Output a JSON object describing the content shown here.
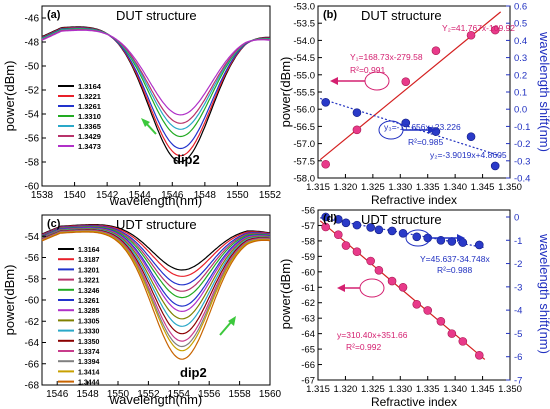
{
  "figure": {
    "description_panels": [
      "a",
      "b",
      "c",
      "d"
    ]
  },
  "chart_data": [
    {
      "panel": "(a)",
      "type": "line",
      "title": "DUT structure",
      "xlabel": "wavelength(nm)",
      "ylabel": "power(dBm)",
      "xlim": [
        1538,
        1552
      ],
      "ylim": [
        -60,
        -45
      ],
      "xticks": [
        1538,
        1540,
        1542,
        1544,
        1546,
        1548,
        1550,
        1552
      ],
      "yticks": [
        -60,
        -58,
        -56,
        -54,
        -52,
        -50,
        -48,
        -46
      ],
      "annotation": "dip2",
      "legend": [
        "1.3164",
        "1.3221",
        "1.3261",
        "1.3310",
        "1.3365",
        "1.3429",
        "1.3473"
      ],
      "colors": [
        "#000000",
        "#e8202a",
        "#2233cc",
        "#22aa22",
        "#2aa8c8",
        "#b8326a",
        "#b030c8"
      ],
      "dip_center": 1546.5,
      "dip_depths": [
        -58.0,
        -57.5,
        -56.9,
        -55.9,
        -55.3,
        -54.8,
        -54.1
      ],
      "top_level": -47.0
    },
    {
      "panel": "(b)",
      "type": "scatter",
      "title": "DUT structure",
      "xlabel": "Refractive index",
      "ylabel": "power(dBm)",
      "y2label": "wavelength shift(nm)",
      "xlim": [
        1.315,
        1.35
      ],
      "ylim": [
        -58,
        -53
      ],
      "y2lim": [
        -0.4,
        0.6
      ],
      "xticks": [
        1.315,
        1.32,
        1.325,
        1.33,
        1.335,
        1.34,
        1.345,
        1.35
      ],
      "yticks": [
        -58.0,
        -57.5,
        -57.0,
        -56.5,
        -56.0,
        -55.5,
        -55.0,
        -54.5,
        -54.0,
        -53.5,
        -53.0
      ],
      "y2ticks": [
        -0.4,
        -0.3,
        -0.2,
        -0.1,
        0.0,
        0.1,
        0.2,
        0.3,
        0.4,
        0.5,
        0.6
      ],
      "series": [
        {
          "axis": "y",
          "x": [
            1.3164,
            1.3221,
            1.331,
            1.3365,
            1.3429,
            1.3473
          ],
          "y": [
            -57.6,
            -56.6,
            -55.2,
            -54.3,
            -53.85,
            -53.7
          ]
        },
        {
          "axis": "y2",
          "x": [
            1.3164,
            1.3221,
            1.331,
            1.3365,
            1.3429,
            1.3473
          ],
          "y": [
            0.04,
            -0.02,
            -0.08,
            -0.13,
            -0.16,
            -0.33
          ]
        }
      ],
      "annotations": [
        "Y₁=168.73x-279.58",
        "R²=0.991",
        "Y₂=41.767x-109.92",
        "y₃=-17.656x+23.226",
        "R²=0.985",
        "y₂=-3.9019x+4.8605"
      ]
    },
    {
      "panel": "(c)",
      "type": "line",
      "title": "UDT structure",
      "xlabel": "wavelength(nm)",
      "ylabel": "power(dBm)",
      "xlim": [
        1545,
        1560
      ],
      "ylim": [
        -68,
        -52
      ],
      "xticks": [
        1546,
        1548,
        1550,
        1552,
        1554,
        1556,
        1558,
        1560
      ],
      "yticks": [
        -68,
        -66,
        -64,
        -62,
        -60,
        -58,
        -56,
        -54
      ],
      "annotation": "dip2",
      "legend": [
        "1.3164",
        "1.3187",
        "1.3201",
        "1.3221",
        "1.3246",
        "1.3261",
        "1.3285",
        "1.3305",
        "1.3330",
        "1.3350",
        "1.3374",
        "1.3394",
        "1.3414",
        "1.3444"
      ],
      "colors": [
        "#000000",
        "#e8202a",
        "#2233cc",
        "#b8326a",
        "#22aa22",
        "#2233cc",
        "#b030c8",
        "#808000",
        "#2aa8c8",
        "#8b0000",
        "#c83c8c",
        "#808080",
        "#c8a000",
        "#c86400"
      ],
      "dip_center": 1554.2,
      "dip_depths": [
        -57.2,
        -57.8,
        -58.6,
        -59.2,
        -59.8,
        -60.6,
        -61.1,
        -61.8,
        -62.5,
        -63.2,
        -63.9,
        -64.4,
        -64.8,
        -65.6
      ],
      "top_level": -53.2
    },
    {
      "panel": "(d)",
      "type": "scatter",
      "title": "UDT structure",
      "xlabel": "Refractive index",
      "ylabel": "power(dBm)",
      "y2label": "wavelength shift(nm)",
      "xlim": [
        1.315,
        1.35
      ],
      "ylim": [
        -67,
        -56
      ],
      "y2lim": [
        -7,
        0.3
      ],
      "xticks": [
        1.315,
        1.32,
        1.325,
        1.33,
        1.335,
        1.34,
        1.345,
        1.35
      ],
      "yticks": [
        -67,
        -66,
        -65,
        -64,
        -63,
        -62,
        -61,
        -60,
        -59,
        -58,
        -57,
        -56
      ],
      "y2ticks": [
        -7,
        -6,
        -5,
        -4,
        -3,
        -2,
        -1,
        0
      ],
      "series": [
        {
          "axis": "y",
          "x": [
            1.3164,
            1.3187,
            1.3201,
            1.3221,
            1.3246,
            1.3261,
            1.3285,
            1.3305,
            1.333,
            1.335,
            1.3374,
            1.3394,
            1.3414,
            1.3444
          ],
          "y": [
            -57.1,
            -57.6,
            -58.3,
            -58.7,
            -59.3,
            -59.9,
            -60.6,
            -61.0,
            -62.1,
            -62.5,
            -63.2,
            -64.0,
            -64.5,
            -65.4
          ]
        },
        {
          "axis": "y2",
          "x": [
            1.3164,
            1.3187,
            1.3201,
            1.3221,
            1.3246,
            1.3261,
            1.3285,
            1.3305,
            1.333,
            1.335,
            1.3374,
            1.3394,
            1.3414,
            1.3444
          ],
          "y": [
            0.0,
            -0.1,
            -0.25,
            -0.35,
            -0.45,
            -0.55,
            -0.6,
            -0.7,
            -0.85,
            -0.9,
            -1.0,
            -1.05,
            -1.1,
            -1.2
          ]
        }
      ],
      "annotations": [
        "Y=45.637-34.748x",
        "R²=0.988",
        "y=310.40x+351.66",
        "R²=0.992"
      ]
    }
  ]
}
